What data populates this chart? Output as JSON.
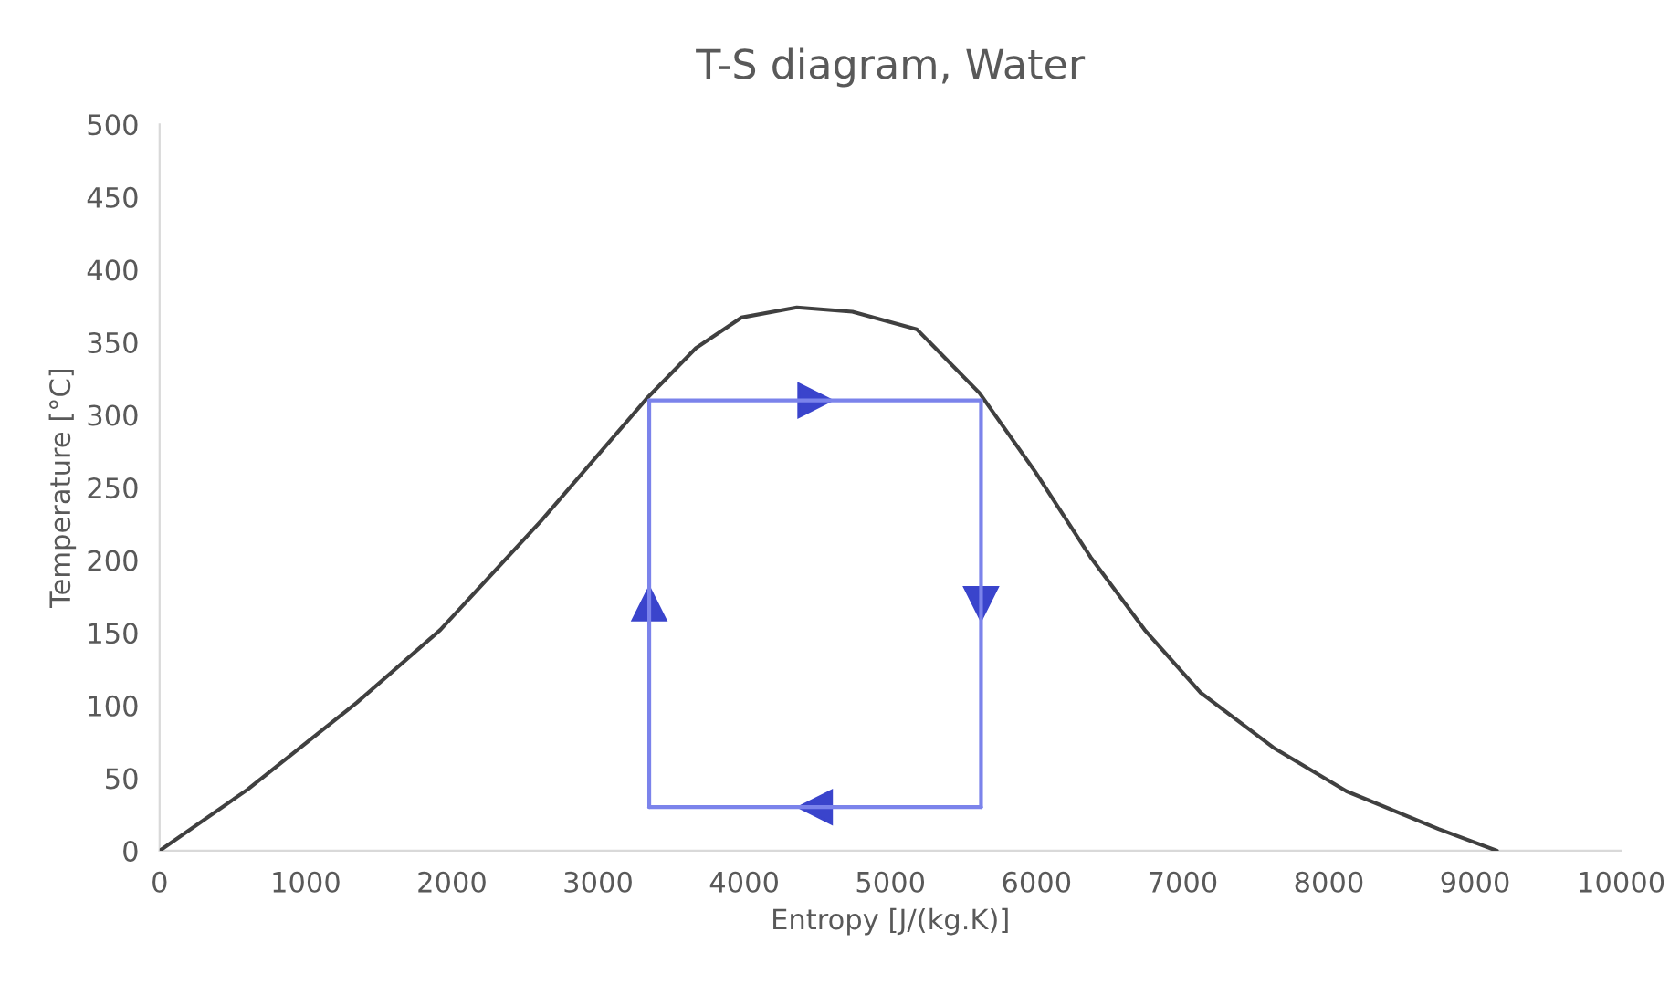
{
  "chart_data": {
    "type": "line",
    "title": "T-S diagram, Water",
    "xlabel": "Entropy [J/(kg.K)]",
    "ylabel": "Temperature [°C]",
    "xlim": [
      0,
      10000
    ],
    "xticks": [
      0,
      1000,
      2000,
      3000,
      4000,
      5000,
      6000,
      7000,
      8000,
      9000,
      10000
    ],
    "ylim": [
      0,
      500
    ],
    "yticks": [
      0,
      50,
      100,
      150,
      200,
      250,
      300,
      350,
      400,
      450,
      500
    ],
    "grid": false,
    "legend": false,
    "series": [
      {
        "color": "#404040",
        "x": [
          0,
          600,
          1350,
          1920,
          2610,
          3330,
          3670,
          3980,
          4360,
          4740,
          5180,
          5610,
          5990,
          6370,
          6740,
          7120,
          7620,
          8120,
          8750,
          9150
        ],
        "values": [
          0,
          42,
          102,
          152,
          227,
          311,
          346,
          367,
          374,
          371,
          359,
          315,
          261,
          202,
          152,
          109,
          71,
          41,
          15,
          0
        ]
      },
      {
        "color": "#7b83eb",
        "x": [
          3350,
          3350
        ],
        "values": [
          30,
          310
        ]
      },
      {
        "color": "#7b83eb",
        "x": [
          3350,
          5620
        ],
        "values": [
          310,
          310
        ]
      },
      {
        "color": "#7b83eb",
        "x": [
          5620,
          5620
        ],
        "values": [
          310,
          30
        ]
      },
      {
        "color": "#7b83eb",
        "x": [
          5620,
          3350
        ],
        "values": [
          30,
          30
        ]
      }
    ]
  }
}
